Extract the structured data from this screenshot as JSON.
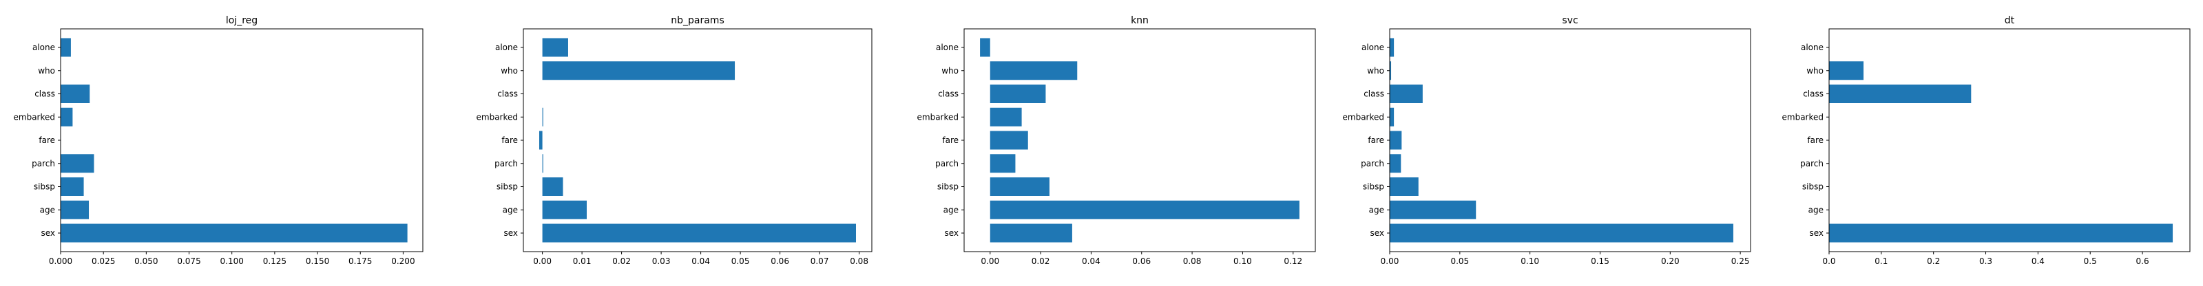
{
  "style": {
    "bar_color": "#1f77b4",
    "background": "#ffffff"
  },
  "chart_data": [
    {
      "type": "bar",
      "orientation": "horizontal",
      "title": "loj_reg",
      "xlabel": "",
      "ylabel": "",
      "categories": [
        "sex",
        "age",
        "sibsp",
        "parch",
        "fare",
        "embarked",
        "class",
        "who",
        "alone"
      ],
      "values": [
        0.2025,
        0.0165,
        0.0135,
        0.0195,
        0.0,
        0.007,
        0.017,
        0.0,
        0.006
      ],
      "xlim": [
        0.0,
        0.2115
      ],
      "xticks": [
        "0.000",
        "0.025",
        "0.050",
        "0.075",
        "0.100",
        "0.125",
        "0.150",
        "0.175",
        "0.200"
      ],
      "xtick_values": [
        0.0,
        0.025,
        0.05,
        0.075,
        0.1,
        0.125,
        0.15,
        0.175,
        0.2
      ],
      "grid": false,
      "legend": "none"
    },
    {
      "type": "bar",
      "orientation": "horizontal",
      "title": "nb_params",
      "xlabel": "",
      "ylabel": "",
      "categories": [
        "sex",
        "age",
        "sibsp",
        "parch",
        "fare",
        "embarked",
        "class",
        "who",
        "alone"
      ],
      "values": [
        0.0792,
        0.0112,
        0.0052,
        0.0002,
        -0.0008,
        0.0002,
        0.0,
        0.0486,
        0.0065
      ],
      "xlim": [
        -0.0048,
        0.0832
      ],
      "xticks": [
        "0.00",
        "0.01",
        "0.02",
        "0.03",
        "0.04",
        "0.05",
        "0.06",
        "0.07",
        "0.08"
      ],
      "xtick_values": [
        0.0,
        0.01,
        0.02,
        0.03,
        0.04,
        0.05,
        0.06,
        0.07,
        0.08
      ],
      "grid": false,
      "legend": "none"
    },
    {
      "type": "bar",
      "orientation": "horizontal",
      "title": "knn",
      "xlabel": "",
      "ylabel": "",
      "categories": [
        "sex",
        "age",
        "sibsp",
        "parch",
        "fare",
        "embarked",
        "class",
        "who",
        "alone"
      ],
      "values": [
        0.0325,
        0.1225,
        0.0235,
        0.01,
        0.015,
        0.0125,
        0.022,
        0.0345,
        -0.004
      ],
      "xlim": [
        -0.0103,
        0.1288
      ],
      "xticks": [
        "0.00",
        "0.02",
        "0.04",
        "0.06",
        "0.08",
        "0.10",
        "0.12"
      ],
      "xtick_values": [
        0.0,
        0.02,
        0.04,
        0.06,
        0.08,
        0.1,
        0.12
      ],
      "grid": false,
      "legend": "none"
    },
    {
      "type": "bar",
      "orientation": "horizontal",
      "title": "svc",
      "xlabel": "",
      "ylabel": "",
      "categories": [
        "sex",
        "age",
        "sibsp",
        "parch",
        "fare",
        "embarked",
        "class",
        "who",
        "alone"
      ],
      "values": [
        0.245,
        0.0615,
        0.0205,
        0.008,
        0.0085,
        0.003,
        0.0235,
        0.001,
        0.003
      ],
      "xlim": [
        0.0,
        0.2573
      ],
      "xticks": [
        "0.00",
        "0.05",
        "0.10",
        "0.15",
        "0.20",
        "0.25"
      ],
      "xtick_values": [
        0.0,
        0.05,
        0.1,
        0.15,
        0.2,
        0.25
      ],
      "grid": false,
      "legend": "none"
    },
    {
      "type": "bar",
      "orientation": "horizontal",
      "title": "dt",
      "xlabel": "",
      "ylabel": "",
      "categories": [
        "sex",
        "age",
        "sibsp",
        "parch",
        "fare",
        "embarked",
        "class",
        "who",
        "alone"
      ],
      "values": [
        0.658,
        0.0,
        0.0,
        0.0,
        0.0,
        0.0,
        0.272,
        0.066,
        0.0
      ],
      "xlim": [
        0.0,
        0.6909
      ],
      "xticks": [
        "0.0",
        "0.1",
        "0.2",
        "0.3",
        "0.4",
        "0.5",
        "0.6"
      ],
      "xtick_values": [
        0.0,
        0.1,
        0.2,
        0.3,
        0.4,
        0.5,
        0.6
      ],
      "grid": false,
      "legend": "none"
    }
  ]
}
